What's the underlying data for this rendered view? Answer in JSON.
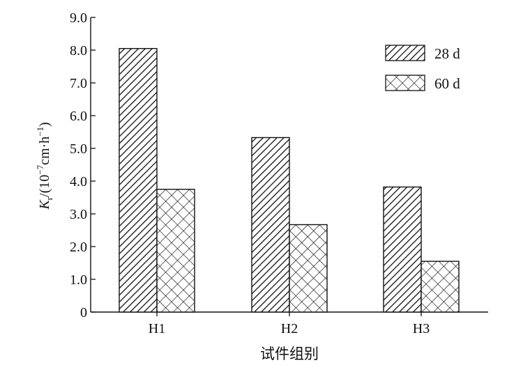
{
  "chart_data": {
    "type": "bar",
    "categories": [
      "H1",
      "H2",
      "H3"
    ],
    "series": [
      {
        "name": "28 d",
        "values": [
          8.05,
          5.33,
          3.82
        ],
        "pattern": "diagonal-hatch"
      },
      {
        "name": "60 d",
        "values": [
          3.75,
          2.67,
          1.55
        ],
        "pattern": "crosshatch"
      }
    ],
    "xlabel": "试件组别",
    "ylabel": {
      "italic": "K",
      "subscript": "r",
      "unit_open": "/(10",
      "unit_exp": "−7",
      "unit_mid": "cm·h",
      "unit_exp2": "−1",
      "unit_close": ")"
    },
    "yticks": [
      "0",
      "1.0",
      "2.0",
      "3.0",
      "4.0",
      "5.0",
      "6.0",
      "7.0",
      "8.0",
      "9.0"
    ],
    "ylim": [
      0,
      9
    ],
    "grid": false,
    "legend_position": "top-right",
    "colors": {
      "ink": "#111111",
      "background": "#ffffff"
    }
  }
}
